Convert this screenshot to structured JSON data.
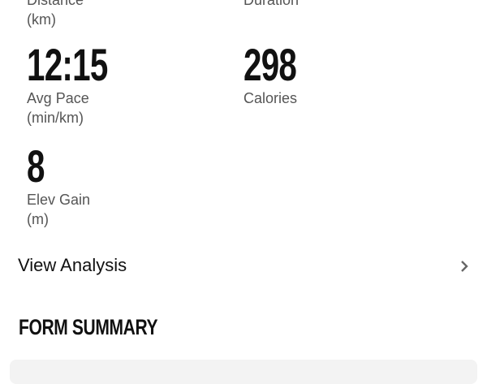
{
  "stats": [
    {
      "value": "",
      "label_line1": "Distance",
      "label_line2": "(km)"
    },
    {
      "value": "",
      "label_line1": "Duration",
      "label_line2": ""
    },
    {
      "value": "12:15",
      "label_line1": "Avg Pace",
      "label_line2": "(min/km)"
    },
    {
      "value": "298",
      "label_line1": "Calories",
      "label_line2": ""
    },
    {
      "value": "8",
      "label_line1": "Elev Gain",
      "label_line2": "(m)"
    }
  ],
  "view_analysis": {
    "label": "View Analysis",
    "icon": "chevron-right-icon"
  },
  "form_summary": {
    "title": "FORM SUMMARY"
  }
}
